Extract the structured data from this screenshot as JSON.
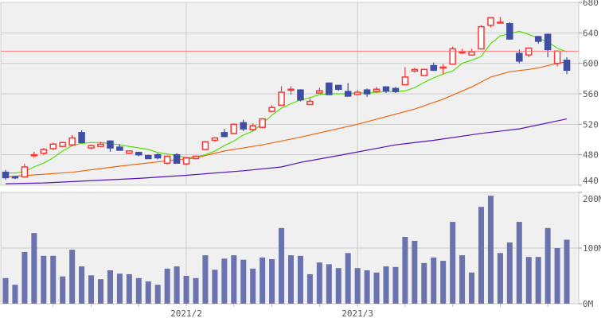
{
  "chart_data": [
    {
      "type": "candlestick",
      "pane": "price",
      "ylim": [
        440,
        680
      ],
      "y_ticks": [
        "680",
        "640",
        "600",
        "560",
        "520",
        "480",
        "440"
      ],
      "x_ticks": [
        {
          "index": 19,
          "label": "2021/2"
        },
        {
          "index": 37,
          "label": "2021/3"
        }
      ],
      "grid": true,
      "reference_line": {
        "value": 616,
        "color": "#ff7b7b"
      },
      "colors": {
        "up": "#ff3333",
        "down": "#3f4ea3",
        "ma_short": "#55e000",
        "ma_mid": "#ee6611",
        "ma_long": "#5511bb"
      },
      "candles": [
        {
          "o": 457,
          "h": 460,
          "l": 447,
          "c": 450
        },
        {
          "o": 451,
          "h": 452,
          "l": 448,
          "c": 450
        },
        {
          "o": 451,
          "h": 468,
          "l": 450,
          "c": 464
        },
        {
          "o": 480,
          "h": 484,
          "l": 476,
          "c": 480
        },
        {
          "o": 482,
          "h": 489,
          "l": 480,
          "c": 487
        },
        {
          "o": 488,
          "h": 496,
          "l": 486,
          "c": 494
        },
        {
          "o": 491,
          "h": 497,
          "l": 490,
          "c": 496
        },
        {
          "o": 493,
          "h": 506,
          "l": 491,
          "c": 502
        },
        {
          "o": 509,
          "h": 512,
          "l": 495,
          "c": 496
        },
        {
          "o": 489,
          "h": 493,
          "l": 487,
          "c": 492
        },
        {
          "o": 491,
          "h": 497,
          "l": 490,
          "c": 494
        },
        {
          "o": 498,
          "h": 499,
          "l": 484,
          "c": 489
        },
        {
          "o": 490,
          "h": 494,
          "l": 486,
          "c": 486
        },
        {
          "o": 482,
          "h": 486,
          "l": 481,
          "c": 485
        },
        {
          "o": 483,
          "h": 484,
          "l": 478,
          "c": 480
        },
        {
          "o": 479,
          "h": 480,
          "l": 475,
          "c": 475
        },
        {
          "o": 480,
          "h": 482,
          "l": 474,
          "c": 476
        },
        {
          "o": 469,
          "h": 479,
          "l": 467,
          "c": 478
        },
        {
          "o": 480,
          "h": 482,
          "l": 469,
          "c": 469
        },
        {
          "o": 468,
          "h": 477,
          "l": 466,
          "c": 476
        },
        {
          "o": 475,
          "h": 479,
          "l": 474,
          "c": 478
        },
        {
          "o": 487,
          "h": 498,
          "l": 486,
          "c": 497
        },
        {
          "o": 499,
          "h": 503,
          "l": 497,
          "c": 502
        },
        {
          "o": 509,
          "h": 514,
          "l": 503,
          "c": 504
        },
        {
          "o": 508,
          "h": 521,
          "l": 508,
          "c": 520
        },
        {
          "o": 522,
          "h": 526,
          "l": 511,
          "c": 514
        },
        {
          "o": 513,
          "h": 521,
          "l": 511,
          "c": 518
        },
        {
          "o": 516,
          "h": 528,
          "l": 515,
          "c": 527
        },
        {
          "o": 537,
          "h": 545,
          "l": 536,
          "c": 542
        },
        {
          "o": 545,
          "h": 570,
          "l": 545,
          "c": 562
        },
        {
          "o": 566,
          "h": 570,
          "l": 559,
          "c": 566
        },
        {
          "o": 565,
          "h": 566,
          "l": 550,
          "c": 552
        },
        {
          "o": 546,
          "h": 554,
          "l": 545,
          "c": 550
        },
        {
          "o": 561,
          "h": 568,
          "l": 561,
          "c": 564
        },
        {
          "o": 574,
          "h": 575,
          "l": 559,
          "c": 559
        },
        {
          "o": 571,
          "h": 572,
          "l": 564,
          "c": 566
        },
        {
          "o": 563,
          "h": 574,
          "l": 557,
          "c": 557
        },
        {
          "o": 559,
          "h": 565,
          "l": 559,
          "c": 562
        },
        {
          "o": 565,
          "h": 567,
          "l": 556,
          "c": 560
        },
        {
          "o": 563,
          "h": 569,
          "l": 561,
          "c": 566
        },
        {
          "o": 569,
          "h": 570,
          "l": 561,
          "c": 564
        },
        {
          "o": 567,
          "h": 569,
          "l": 561,
          "c": 563
        },
        {
          "o": 572,
          "h": 595,
          "l": 572,
          "c": 582
        },
        {
          "o": 590,
          "h": 594,
          "l": 588,
          "c": 592
        },
        {
          "o": 584,
          "h": 593,
          "l": 584,
          "c": 592
        },
        {
          "o": 597,
          "h": 601,
          "l": 590,
          "c": 591
        },
        {
          "o": 595,
          "h": 599,
          "l": 586,
          "c": 595
        },
        {
          "o": 599,
          "h": 622,
          "l": 599,
          "c": 619
        },
        {
          "o": 615,
          "h": 619,
          "l": 612,
          "c": 615
        },
        {
          "o": 611,
          "h": 619,
          "l": 611,
          "c": 615
        },
        {
          "o": 619,
          "h": 650,
          "l": 619,
          "c": 648
        },
        {
          "o": 650,
          "h": 660,
          "l": 647,
          "c": 660
        },
        {
          "o": 654,
          "h": 661,
          "l": 653,
          "c": 654
        },
        {
          "o": 652,
          "h": 654,
          "l": 632,
          "c": 632
        },
        {
          "o": 613,
          "h": 618,
          "l": 600,
          "c": 603
        },
        {
          "o": 611,
          "h": 621,
          "l": 608,
          "c": 620
        },
        {
          "o": 635,
          "h": 636,
          "l": 626,
          "c": 629
        },
        {
          "o": 638,
          "h": 639,
          "l": 608,
          "c": 618
        },
        {
          "o": 600,
          "h": 617,
          "l": 596,
          "c": 616
        },
        {
          "o": 604,
          "h": 608,
          "l": 586,
          "c": 591
        }
      ],
      "moving_averages": [
        {
          "key": "ma_short",
          "points": [
            [
              0,
              456
            ],
            [
              1,
              456
            ],
            [
              2,
              458
            ],
            [
              3,
              464
            ],
            [
              4,
              469
            ],
            [
              5,
              476
            ],
            [
              6,
              485
            ],
            [
              7,
              492
            ],
            [
              8,
              495
            ],
            [
              9,
              496
            ],
            [
              10,
              496
            ],
            [
              11,
              495
            ],
            [
              12,
              493
            ],
            [
              13,
              491
            ],
            [
              14,
              489
            ],
            [
              15,
              487
            ],
            [
              16,
              483
            ],
            [
              17,
              481
            ],
            [
              18,
              479
            ],
            [
              19,
              476
            ],
            [
              20,
              477
            ],
            [
              21,
              480
            ],
            [
              22,
              485
            ],
            [
              23,
              492
            ],
            [
              24,
              498
            ],
            [
              25,
              506
            ],
            [
              26,
              511
            ],
            [
              27,
              521
            ],
            [
              28,
              532
            ],
            [
              29,
              541
            ],
            [
              30,
              547
            ],
            [
              31,
              552
            ],
            [
              32,
              555
            ],
            [
              33,
              559
            ],
            [
              34,
              560
            ],
            [
              35,
              560
            ],
            [
              36,
              560
            ],
            [
              37,
              561
            ],
            [
              38,
              561
            ],
            [
              39,
              562
            ],
            [
              40,
              563
            ],
            [
              41,
              563
            ],
            [
              42,
              564
            ],
            [
              43,
              568
            ],
            [
              44,
              575
            ],
            [
              45,
              581
            ],
            [
              46,
              586
            ],
            [
              47,
              590
            ],
            [
              48,
              600
            ],
            [
              49,
              604
            ],
            [
              50,
              609
            ],
            [
              51,
              626
            ],
            [
              52,
              636
            ],
            [
              53,
              639
            ],
            [
              54,
              642
            ],
            [
              55,
              638
            ],
            [
              56,
              633
            ],
            [
              57,
              628
            ],
            [
              58,
              620
            ],
            [
              59,
              615
            ]
          ]
        },
        {
          "key": "ma_mid",
          "points": [
            [
              0,
              451
            ],
            [
              7,
              457
            ],
            [
              12,
              465
            ],
            [
              17,
              472
            ],
            [
              20,
              476
            ],
            [
              23,
              485
            ],
            [
              27,
              493
            ],
            [
              31,
              503
            ],
            [
              37,
              520
            ],
            [
              43,
              540
            ],
            [
              46,
              553
            ],
            [
              49,
              569
            ],
            [
              51,
              582
            ],
            [
              53,
              589
            ],
            [
              55,
              592
            ],
            [
              56,
              594
            ],
            [
              58,
              600
            ],
            [
              59,
              602
            ]
          ]
        },
        {
          "key": "ma_long",
          "points": [
            [
              0,
              442
            ],
            [
              4,
              443
            ],
            [
              14,
              449
            ],
            [
              19,
              453
            ],
            [
              25,
              459
            ],
            [
              29,
              464
            ],
            [
              31,
              470
            ],
            [
              35,
              479
            ],
            [
              41,
              493
            ],
            [
              45,
              499
            ],
            [
              50,
              508
            ],
            [
              54,
              514
            ],
            [
              59,
              527
            ]
          ]
        }
      ]
    },
    {
      "type": "bar",
      "pane": "volume",
      "ylim": [
        0,
        200
      ],
      "unit": "M",
      "y_ticks": [
        "200M",
        "100M",
        "0M"
      ],
      "color": "#6a72b0",
      "values": [
        46,
        34,
        93,
        127,
        86,
        86,
        49,
        97,
        67,
        51,
        44,
        60,
        54,
        53,
        46,
        40,
        34,
        63,
        67,
        50,
        46,
        87,
        61,
        81,
        87,
        79,
        63,
        83,
        80,
        136,
        87,
        86,
        53,
        74,
        71,
        64,
        91,
        64,
        60,
        56,
        67,
        66,
        120,
        113,
        73,
        83,
        77,
        147,
        87,
        56,
        174,
        194,
        91,
        110,
        147,
        84,
        84,
        136,
        100,
        115
      ]
    }
  ]
}
